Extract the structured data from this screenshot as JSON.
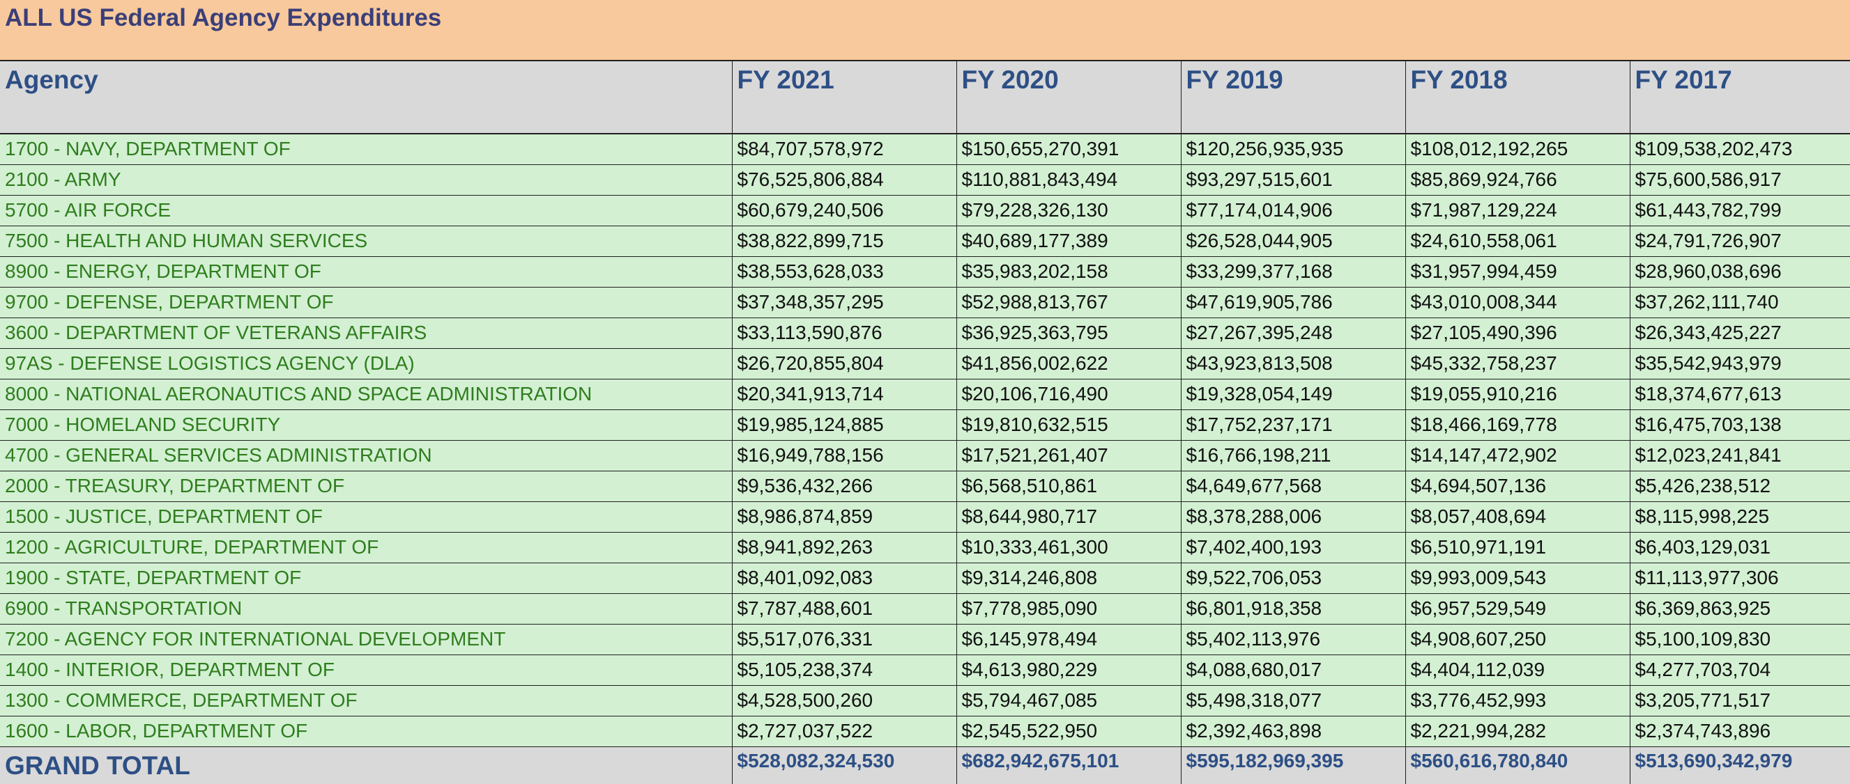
{
  "sheet": {
    "title": "ALL US Federal Agency Expenditures",
    "headers": [
      "Agency",
      "FY 2021",
      "FY 2020",
      "FY 2019",
      "FY 2018",
      "FY 2017"
    ],
    "rows": [
      [
        "1700 - NAVY, DEPARTMENT OF",
        "$84,707,578,972",
        "$150,655,270,391",
        "$120,256,935,935",
        "$108,012,192,265",
        "$109,538,202,473"
      ],
      [
        "2100 - ARMY",
        "$76,525,806,884",
        "$110,881,843,494",
        "$93,297,515,601",
        "$85,869,924,766",
        "$75,600,586,917"
      ],
      [
        "5700 - AIR FORCE",
        "$60,679,240,506",
        "$79,228,326,130",
        "$77,174,014,906",
        "$71,987,129,224",
        "$61,443,782,799"
      ],
      [
        "7500 - HEALTH AND HUMAN SERVICES",
        "$38,822,899,715",
        "$40,689,177,389",
        "$26,528,044,905",
        "$24,610,558,061",
        "$24,791,726,907"
      ],
      [
        "8900 - ENERGY, DEPARTMENT OF",
        "$38,553,628,033",
        "$35,983,202,158",
        "$33,299,377,168",
        "$31,957,994,459",
        "$28,960,038,696"
      ],
      [
        "9700 - DEFENSE, DEPARTMENT OF",
        "$37,348,357,295",
        "$52,988,813,767",
        "$47,619,905,786",
        "$43,010,008,344",
        "$37,262,111,740"
      ],
      [
        "3600 - DEPARTMENT OF VETERANS AFFAIRS",
        "$33,113,590,876",
        "$36,925,363,795",
        "$27,267,395,248",
        "$27,105,490,396",
        "$26,343,425,227"
      ],
      [
        "97AS - DEFENSE LOGISTICS AGENCY (DLA)",
        "$26,720,855,804",
        "$41,856,002,622",
        "$43,923,813,508",
        "$45,332,758,237",
        "$35,542,943,979"
      ],
      [
        "8000 - NATIONAL AERONAUTICS AND SPACE ADMINISTRATION",
        "$20,341,913,714",
        "$20,106,716,490",
        "$19,328,054,149",
        "$19,055,910,216",
        "$18,374,677,613"
      ],
      [
        "7000 - HOMELAND SECURITY",
        "$19,985,124,885",
        "$19,810,632,515",
        "$17,752,237,171",
        "$18,466,169,778",
        "$16,475,703,138"
      ],
      [
        "4700 - GENERAL SERVICES ADMINISTRATION",
        "$16,949,788,156",
        "$17,521,261,407",
        "$16,766,198,211",
        "$14,147,472,902",
        "$12,023,241,841"
      ],
      [
        "2000 - TREASURY, DEPARTMENT OF",
        "$9,536,432,266",
        "$6,568,510,861",
        "$4,649,677,568",
        "$4,694,507,136",
        "$5,426,238,512"
      ],
      [
        "1500 - JUSTICE, DEPARTMENT OF",
        "$8,986,874,859",
        "$8,644,980,717",
        "$8,378,288,006",
        "$8,057,408,694",
        "$8,115,998,225"
      ],
      [
        "1200 - AGRICULTURE, DEPARTMENT OF",
        "$8,941,892,263",
        "$10,333,461,300",
        "$7,402,400,193",
        "$6,510,971,191",
        "$6,403,129,031"
      ],
      [
        "1900 - STATE, DEPARTMENT OF",
        "$8,401,092,083",
        "$9,314,246,808",
        "$9,522,706,053",
        "$9,993,009,543",
        "$11,113,977,306"
      ],
      [
        "6900 - TRANSPORTATION",
        "$7,787,488,601",
        "$7,778,985,090",
        "$6,801,918,358",
        "$6,957,529,549",
        "$6,369,863,925"
      ],
      [
        "7200 - AGENCY FOR INTERNATIONAL DEVELOPMENT",
        "$5,517,076,331",
        "$6,145,978,494",
        "$5,402,113,976",
        "$4,908,607,250",
        "$5,100,109,830"
      ],
      [
        "1400 - INTERIOR, DEPARTMENT OF",
        "$5,105,238,374",
        "$4,613,980,229",
        "$4,088,680,017",
        "$4,404,112,039",
        "$4,277,703,704"
      ],
      [
        "1300 - COMMERCE, DEPARTMENT OF",
        "$4,528,500,260",
        "$5,794,467,085",
        "$5,498,318,077",
        "$3,776,452,993",
        "$3,205,771,517"
      ],
      [
        "1600 - LABOR, DEPARTMENT OF",
        "$2,727,037,522",
        "$2,545,522,950",
        "$2,392,463,898",
        "$2,221,994,282",
        "$2,374,743,896"
      ]
    ],
    "total": [
      "GRAND TOTAL",
      "$528,082,324,530",
      "$682,942,675,101",
      "$595,182,969,395",
      "$560,616,780,840",
      "$513,690,342,979"
    ]
  },
  "colors": {
    "title_band": "#f8c99c",
    "title_text": "#3a3f78",
    "header_bg": "#d9d9d9",
    "header_text": "#2d4f85",
    "row_bg": "#d3f0d3",
    "agency_text": "#2f7d1e",
    "value_text": "#111111",
    "grid_line": "#1f1f1f"
  }
}
